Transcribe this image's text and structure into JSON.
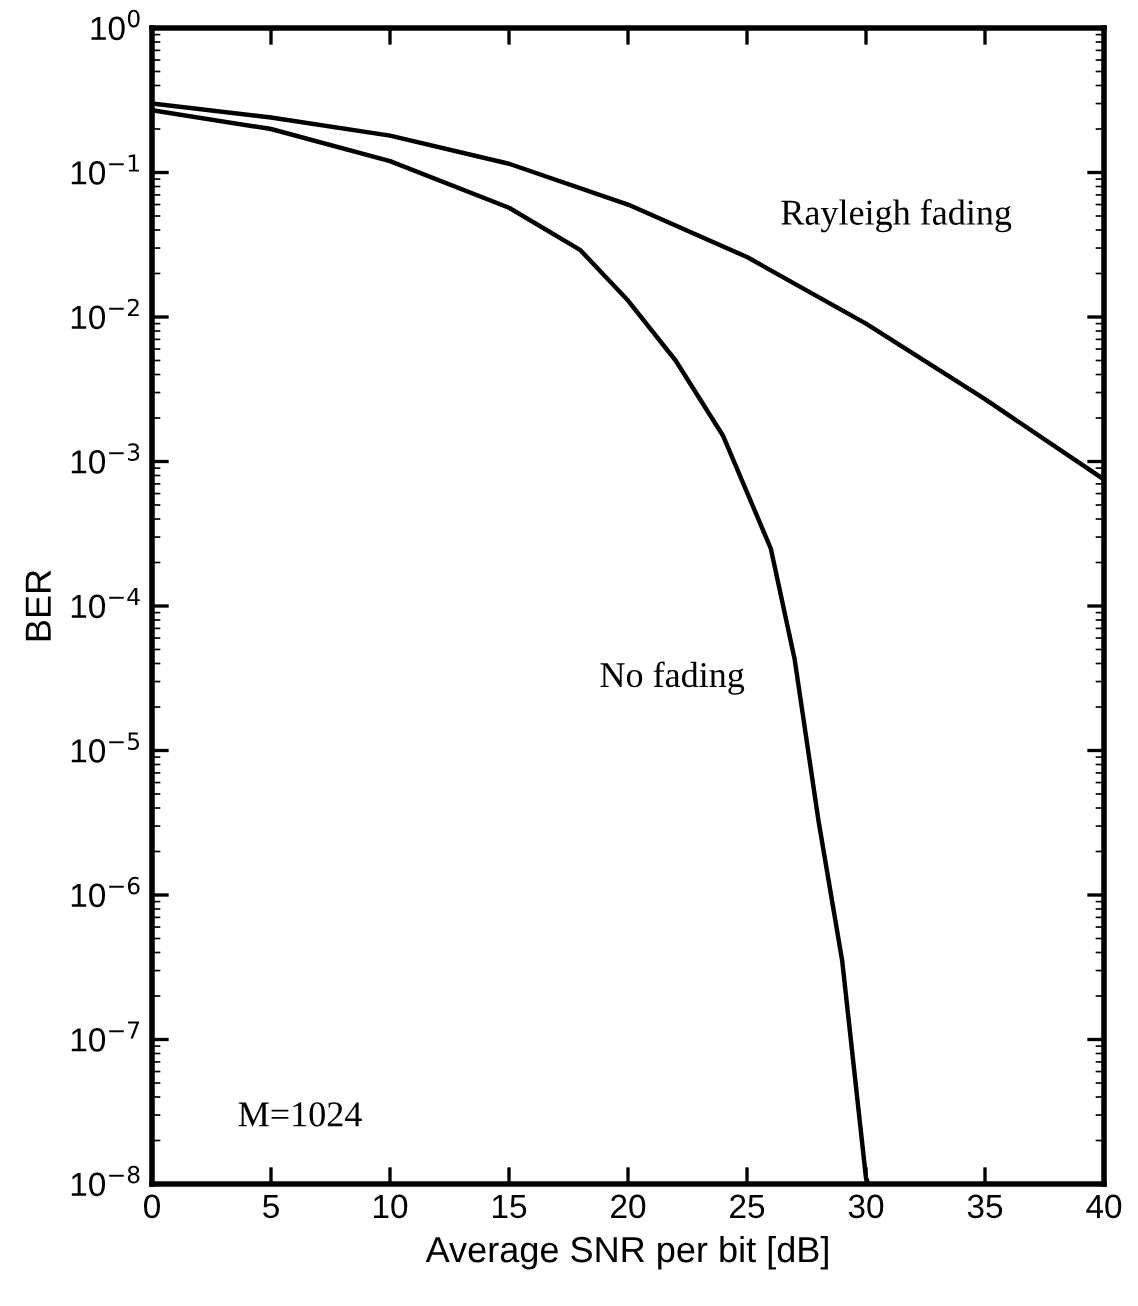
{
  "chart_data": {
    "type": "line",
    "xlabel": "Average SNR per bit [dB]",
    "ylabel": "BER",
    "log": "y",
    "xlim": [
      0,
      40
    ],
    "xticks": [
      0,
      5,
      10,
      15,
      20,
      25,
      30,
      35,
      40
    ],
    "ylim": [
      1e-08,
      1
    ],
    "yticks": [
      {
        "value": 1e-08,
        "label": "10$^{−8}$"
      },
      {
        "value": 1e-07,
        "label": "10$^{−7}$"
      },
      {
        "value": 1e-06,
        "label": "10$^{−6}$"
      },
      {
        "value": 1e-05,
        "label": "10$^{−5}$"
      },
      {
        "value": 0.0001,
        "label": "10$^{−4}$"
      },
      {
        "value": 0.001,
        "label": "10$^{−3}$"
      },
      {
        "value": 0.01,
        "label": "10$^{−2}$"
      },
      {
        "value": 0.1,
        "label": "10$^{−1}$"
      },
      {
        "value": 1,
        "label": "10$^{0}$"
      }
    ],
    "grid": false,
    "marker": "none",
    "line_style": "solid",
    "series": [
      {
        "name": "Rayleigh fading",
        "color": "#000000",
        "x": [
          0,
          5,
          10,
          15,
          20,
          25,
          30,
          35,
          40
        ],
        "values": [
          0.3,
          0.24,
          0.18,
          0.115,
          0.06,
          0.026,
          0.009,
          0.0027,
          0.00075
        ]
      },
      {
        "name": "No fading",
        "color": "#000000",
        "x": [
          0,
          5,
          10,
          15,
          18,
          20,
          22,
          24,
          26,
          27,
          28,
          29,
          30,
          30.1
        ],
        "values": [
          0.27,
          0.2,
          0.12,
          0.057,
          0.029,
          0.013,
          0.005,
          0.0015,
          0.00025,
          4.3e-05,
          3.3e-06,
          3.5e-07,
          1.1e-08,
          1e-08
        ]
      }
    ],
    "annotations": [
      "M=1024"
    ]
  }
}
